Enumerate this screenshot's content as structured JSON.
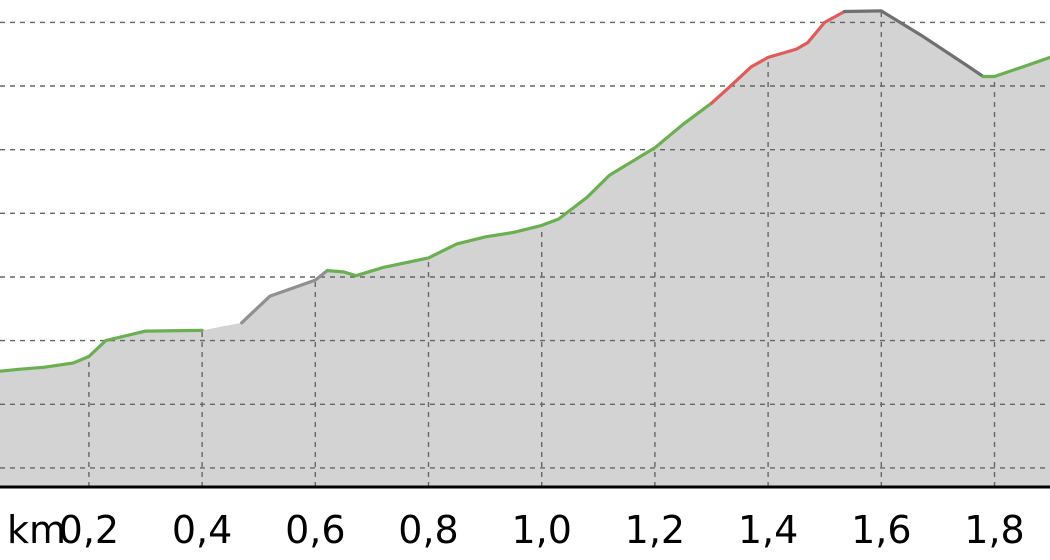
{
  "chart_data": {
    "type": "area",
    "title": "",
    "xlabel": "km",
    "ylabel": "",
    "x_unit_label": "km",
    "x_tick_labels": [
      "0,2",
      "0,4",
      "0,6",
      "0,8",
      "1,0",
      "1,2",
      "1,4",
      "1,6",
      "1,8"
    ],
    "x_ticks": [
      0.2,
      0.4,
      0.6,
      0.8,
      1.0,
      1.2,
      1.4,
      1.6,
      1.8
    ],
    "xlim": [
      0.043,
      1.898
    ],
    "ylim": [
      0,
      7.4
    ],
    "y_gridlines": [
      0.3,
      1.3,
      2.3,
      3.3,
      4.3,
      5.3,
      6.3,
      7.3
    ],
    "grid": true,
    "legend": "none",
    "profile": [
      {
        "x": 0.043,
        "y": 1.82
      },
      {
        "x": 0.076,
        "y": 1.85
      },
      {
        "x": 0.12,
        "y": 1.88
      },
      {
        "x": 0.173,
        "y": 1.95
      },
      {
        "x": 0.2,
        "y": 2.05
      },
      {
        "x": 0.23,
        "y": 2.3
      },
      {
        "x": 0.3,
        "y": 2.45
      },
      {
        "x": 0.4,
        "y": 2.46
      },
      {
        "x": 0.47,
        "y": 2.58
      },
      {
        "x": 0.52,
        "y": 3.0
      },
      {
        "x": 0.6,
        "y": 3.25
      },
      {
        "x": 0.621,
        "y": 3.4
      },
      {
        "x": 0.65,
        "y": 3.38
      },
      {
        "x": 0.672,
        "y": 3.32
      },
      {
        "x": 0.72,
        "y": 3.45
      },
      {
        "x": 0.8,
        "y": 3.6
      },
      {
        "x": 0.85,
        "y": 3.82
      },
      {
        "x": 0.9,
        "y": 3.93
      },
      {
        "x": 0.95,
        "y": 4.0
      },
      {
        "x": 1.0,
        "y": 4.11
      },
      {
        "x": 1.03,
        "y": 4.21
      },
      {
        "x": 1.08,
        "y": 4.55
      },
      {
        "x": 1.12,
        "y": 4.9
      },
      {
        "x": 1.2,
        "y": 5.33
      },
      {
        "x": 1.25,
        "y": 5.7
      },
      {
        "x": 1.3,
        "y": 6.03
      },
      {
        "x": 1.33,
        "y": 6.27
      },
      {
        "x": 1.37,
        "y": 6.6
      },
      {
        "x": 1.4,
        "y": 6.75
      },
      {
        "x": 1.45,
        "y": 6.88
      },
      {
        "x": 1.47,
        "y": 6.98
      },
      {
        "x": 1.5,
        "y": 7.3
      },
      {
        "x": 1.535,
        "y": 7.47
      },
      {
        "x": 1.6,
        "y": 7.48
      },
      {
        "x": 1.67,
        "y": 7.1
      },
      {
        "x": 1.75,
        "y": 6.63
      },
      {
        "x": 1.78,
        "y": 6.45
      },
      {
        "x": 1.8,
        "y": 6.45
      },
      {
        "x": 1.85,
        "y": 6.6
      },
      {
        "x": 1.898,
        "y": 6.75
      }
    ],
    "segments": [
      {
        "from_x": 0.043,
        "to_x": 0.43,
        "color": "#6aaf50"
      },
      {
        "from_x": 0.43,
        "to_x": 0.621,
        "color": "#909090"
      },
      {
        "from_x": 0.621,
        "to_x": 1.3,
        "color": "#6aaf50"
      },
      {
        "from_x": 1.3,
        "to_x": 1.535,
        "color": "#e25b5b"
      },
      {
        "from_x": 1.535,
        "to_x": 1.78,
        "color": "#707070"
      },
      {
        "from_x": 1.78,
        "to_x": 1.898,
        "color": "#6aaf50"
      }
    ],
    "colors": {
      "area_fill": "#d3d3d3",
      "grid": "#666666",
      "axis": "#000000",
      "background": "#ffffff"
    }
  }
}
